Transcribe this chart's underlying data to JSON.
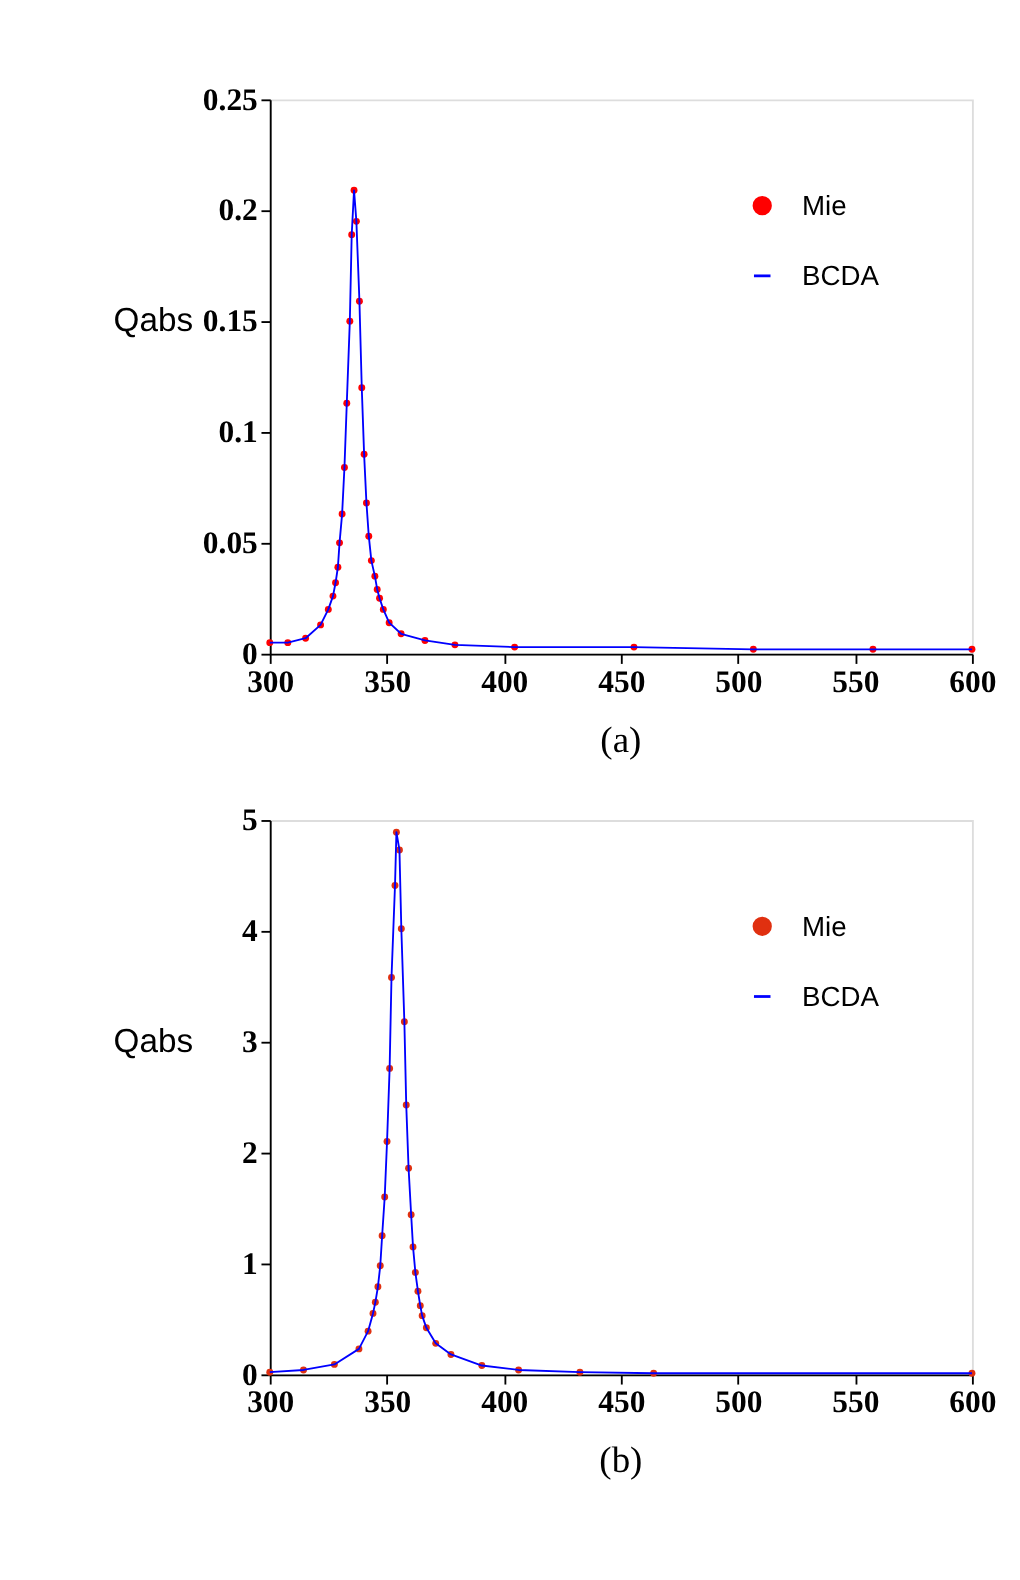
{
  "chart_data": [
    {
      "type": "line",
      "ylabel": "Qabs",
      "annotations": [
        "(a)"
      ],
      "xlim": [
        300,
        600
      ],
      "xticks": [
        300,
        350,
        400,
        450,
        500,
        550,
        600
      ],
      "ylim": [
        0,
        0.25
      ],
      "yticks": [
        0,
        0.05,
        0.1,
        0.15,
        0.2,
        0.25
      ],
      "grid": false,
      "legend": "top right",
      "x": [
        300,
        307.7,
        315.3,
        321.7,
        325.0,
        327.0,
        328.1,
        329.1,
        329.8,
        330.9,
        331.9,
        332.9,
        334.2,
        335.0,
        336.0,
        337.0,
        338.3,
        339.3,
        340.3,
        341.3,
        342.3,
        343.4,
        344.9,
        345.9,
        346.9,
        348.5,
        351.0,
        356.1,
        366.3,
        379.1,
        404.6,
        455.6,
        506.6,
        557.7,
        600
      ],
      "series": [
        {
          "name": "Mie",
          "type": "scatter",
          "marker": "circle",
          "color": "#ff0000",
          "values": [
            0.005,
            0.005,
            0.007,
            0.013,
            0.02,
            0.026,
            0.032,
            0.039,
            0.05,
            0.063,
            0.084,
            0.113,
            0.15,
            0.189,
            0.209,
            0.195,
            0.159,
            0.12,
            0.09,
            0.068,
            0.053,
            0.042,
            0.035,
            0.029,
            0.025,
            0.02,
            0.014,
            0.009,
            0.006,
            0.004,
            0.003,
            0.003,
            0.002,
            0.002,
            0.002
          ]
        },
        {
          "name": "BCDA",
          "line_style": "solid",
          "color": "#0000ff",
          "values": [
            0.005,
            0.005,
            0.007,
            0.013,
            0.02,
            0.026,
            0.032,
            0.039,
            0.05,
            0.063,
            0.084,
            0.113,
            0.15,
            0.189,
            0.209,
            0.195,
            0.159,
            0.12,
            0.09,
            0.068,
            0.053,
            0.042,
            0.035,
            0.029,
            0.025,
            0.02,
            0.014,
            0.009,
            0.006,
            0.004,
            0.003,
            0.003,
            0.002,
            0.002,
            0.002
          ]
        }
      ]
    },
    {
      "type": "line",
      "ylabel": "Qabs",
      "annotations": [
        "(b)"
      ],
      "xlim": [
        300,
        600
      ],
      "xticks": [
        300,
        350,
        400,
        450,
        500,
        550,
        600
      ],
      "ylim": [
        0,
        5
      ],
      "yticks": [
        0,
        1,
        2,
        3,
        4,
        5
      ],
      "grid": false,
      "legend": "top right",
      "x": [
        300,
        314.4,
        327.6,
        338.1,
        342.0,
        344.1,
        345.1,
        346.2,
        347.2,
        348.0,
        349.1,
        350.1,
        351.2,
        352.0,
        353.5,
        354.1,
        355.4,
        356.2,
        357.5,
        358.3,
        359.3,
        360.4,
        361.2,
        362.2,
        363.3,
        364.3,
        365.1,
        366.9,
        370.9,
        377.4,
        390.6,
        406.3,
        432.5,
        464,
        600
      ],
      "series": [
        {
          "name": "Mie",
          "type": "scatter",
          "marker": "circle",
          "color": "#e03010",
          "values": [
            0.02,
            0.04,
            0.09,
            0.23,
            0.39,
            0.55,
            0.65,
            0.79,
            0.98,
            1.25,
            1.6,
            2.1,
            2.76,
            3.58,
            4.41,
            4.89,
            4.73,
            4.02,
            3.18,
            2.43,
            1.86,
            1.44,
            1.15,
            0.92,
            0.75,
            0.62,
            0.53,
            0.42,
            0.28,
            0.18,
            0.08,
            0.04,
            0.02,
            0.01,
            0.01
          ]
        },
        {
          "name": "BCDA",
          "line_style": "solid",
          "color": "#0000ff",
          "values": [
            0.02,
            0.04,
            0.09,
            0.23,
            0.39,
            0.55,
            0.65,
            0.79,
            0.98,
            1.25,
            1.6,
            2.1,
            2.76,
            3.58,
            4.41,
            4.89,
            4.73,
            4.02,
            3.18,
            2.43,
            1.86,
            1.44,
            1.15,
            0.92,
            0.75,
            0.62,
            0.53,
            0.42,
            0.28,
            0.18,
            0.08,
            0.04,
            0.02,
            0.01,
            0.01
          ]
        }
      ]
    }
  ]
}
